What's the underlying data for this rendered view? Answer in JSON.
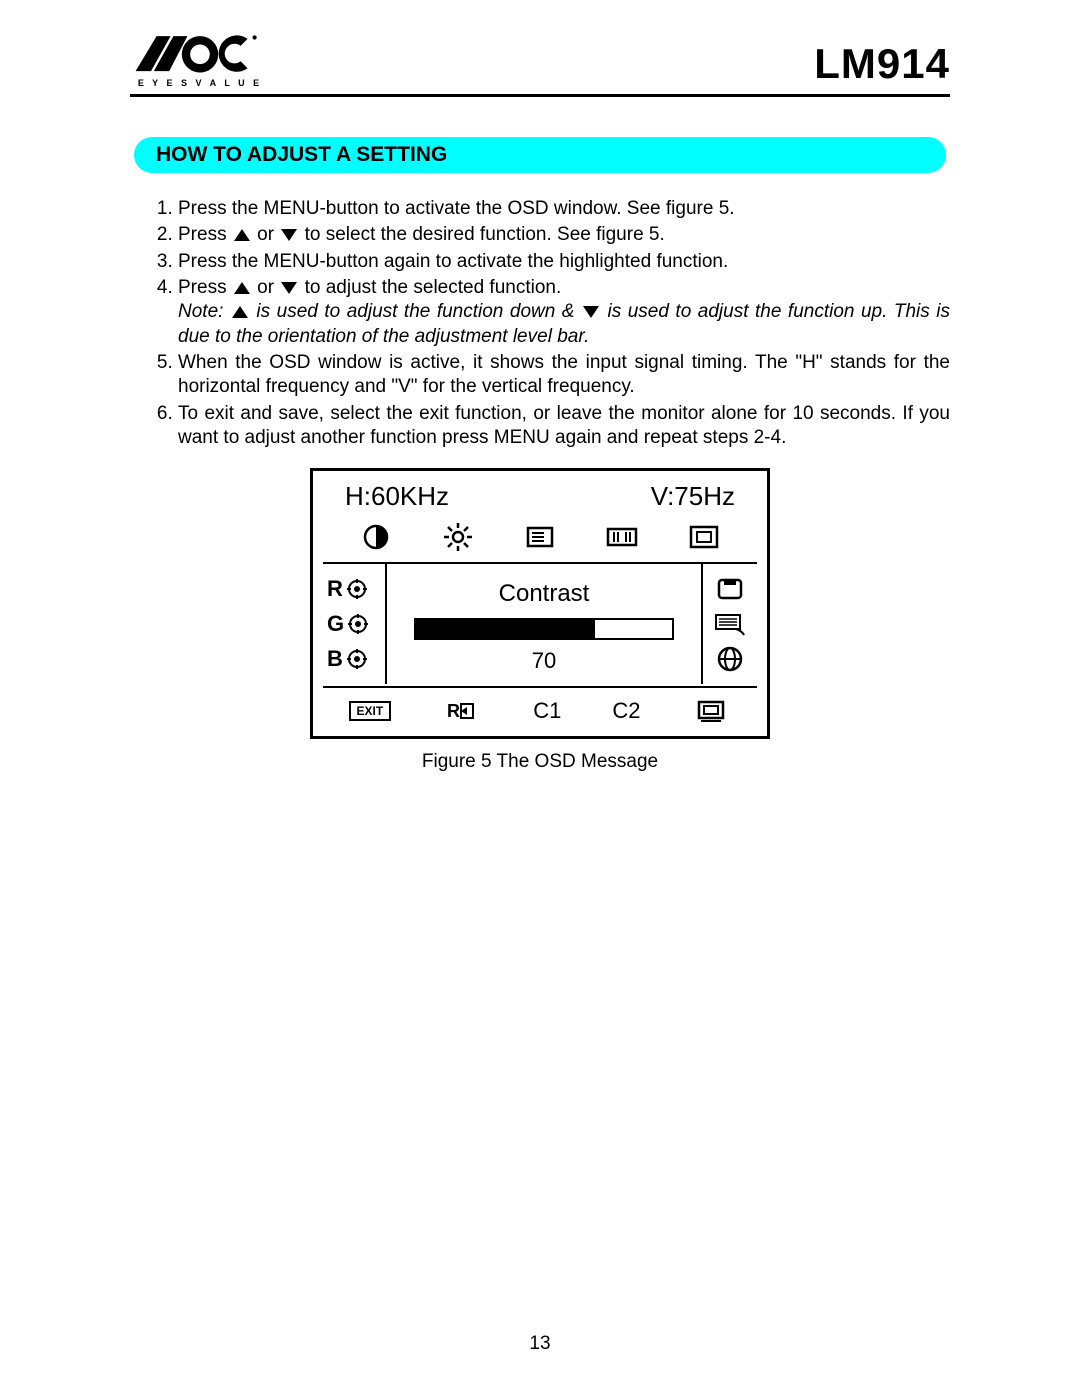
{
  "header": {
    "brand": "AOC",
    "tagline": "E Y E S   V A L U E",
    "model": "LM914"
  },
  "section_title": "HOW TO ADJUST A SETTING",
  "steps": {
    "s1": "Press the MENU-button  to activate the OSD window. See figure 5.",
    "s2a": "Press ",
    "s2b": "  or  ",
    "s2c": " to select the desired function. See figure 5.",
    "s3": "Press the MENU-button again to activate the highlighted function.",
    "s4a": "Press ",
    "s4b": "  or  ",
    "s4c": " to adjust the selected function.",
    "note_a": "Note: ",
    "note_b": " is used to adjust the function down & ",
    "note_c": " is used to adjust the function up.  This is due to the orientation of the adjustment level bar.",
    "s5": "When the OSD window is active, it shows the input signal timing. The  \"H\" stands for the horizontal frequency and \"V\" for the vertical frequency.",
    "s6": "To exit and save, select the exit function, or leave the monitor alone for 10 seconds. If you want to adjust another function press MENU again and repeat steps 2-4."
  },
  "osd": {
    "h_label": "H:60KHz",
    "v_label": "V:75Hz",
    "r": "R",
    "g": "G",
    "b": "B",
    "function": "Contrast",
    "value": "70",
    "value_pct": 70,
    "exit": "EXIT",
    "c1": "C1",
    "c2": "C2"
  },
  "figure_caption": "Figure 5     The  OSD  Message",
  "page_number": "13",
  "colors": {
    "accent": "#00ffff",
    "text": "#000000",
    "bg": "#ffffff"
  }
}
